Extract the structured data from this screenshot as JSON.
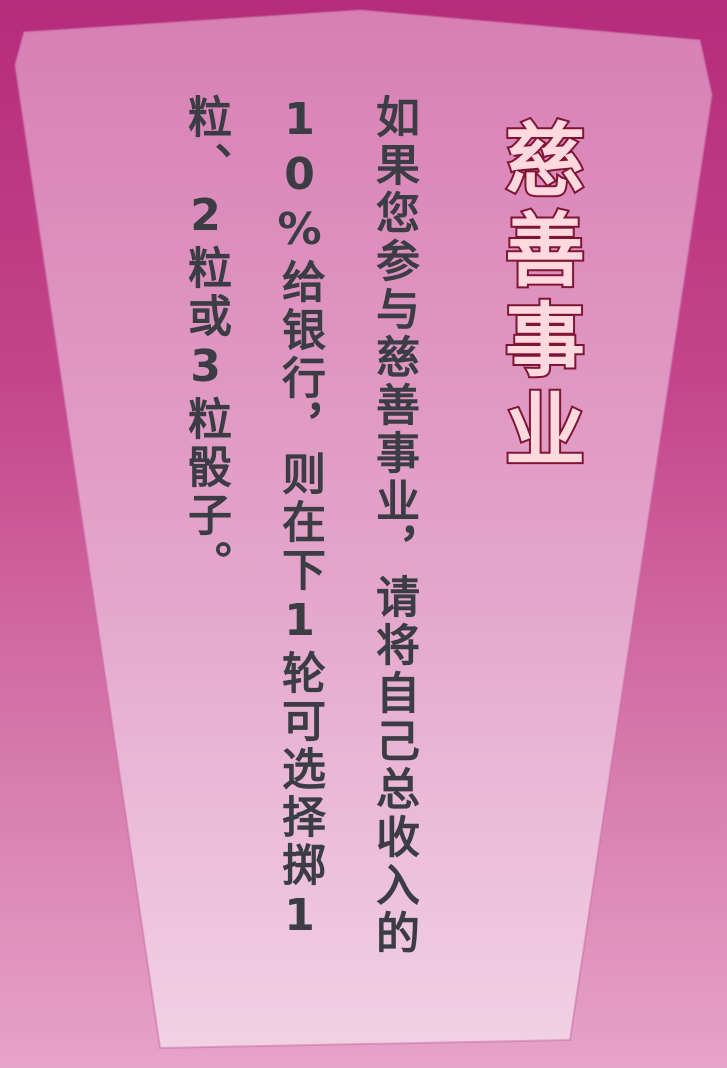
{
  "card": {
    "title": "慈善事业",
    "body": "如果您参与慈善事业，请将自己总收入的10%给银行，则在下1轮可选择掷1粒、2粒或3粒骰子。"
  },
  "colors": {
    "background_top": "#b52c7a",
    "background_bottom": "#e6a3c8",
    "card_fill_top": "#d77fb4",
    "card_fill_bottom": "#f1d1e4",
    "title_fill": "#ffd8e0",
    "title_outline": "#7f1433",
    "body_text": "#3b3c44"
  }
}
